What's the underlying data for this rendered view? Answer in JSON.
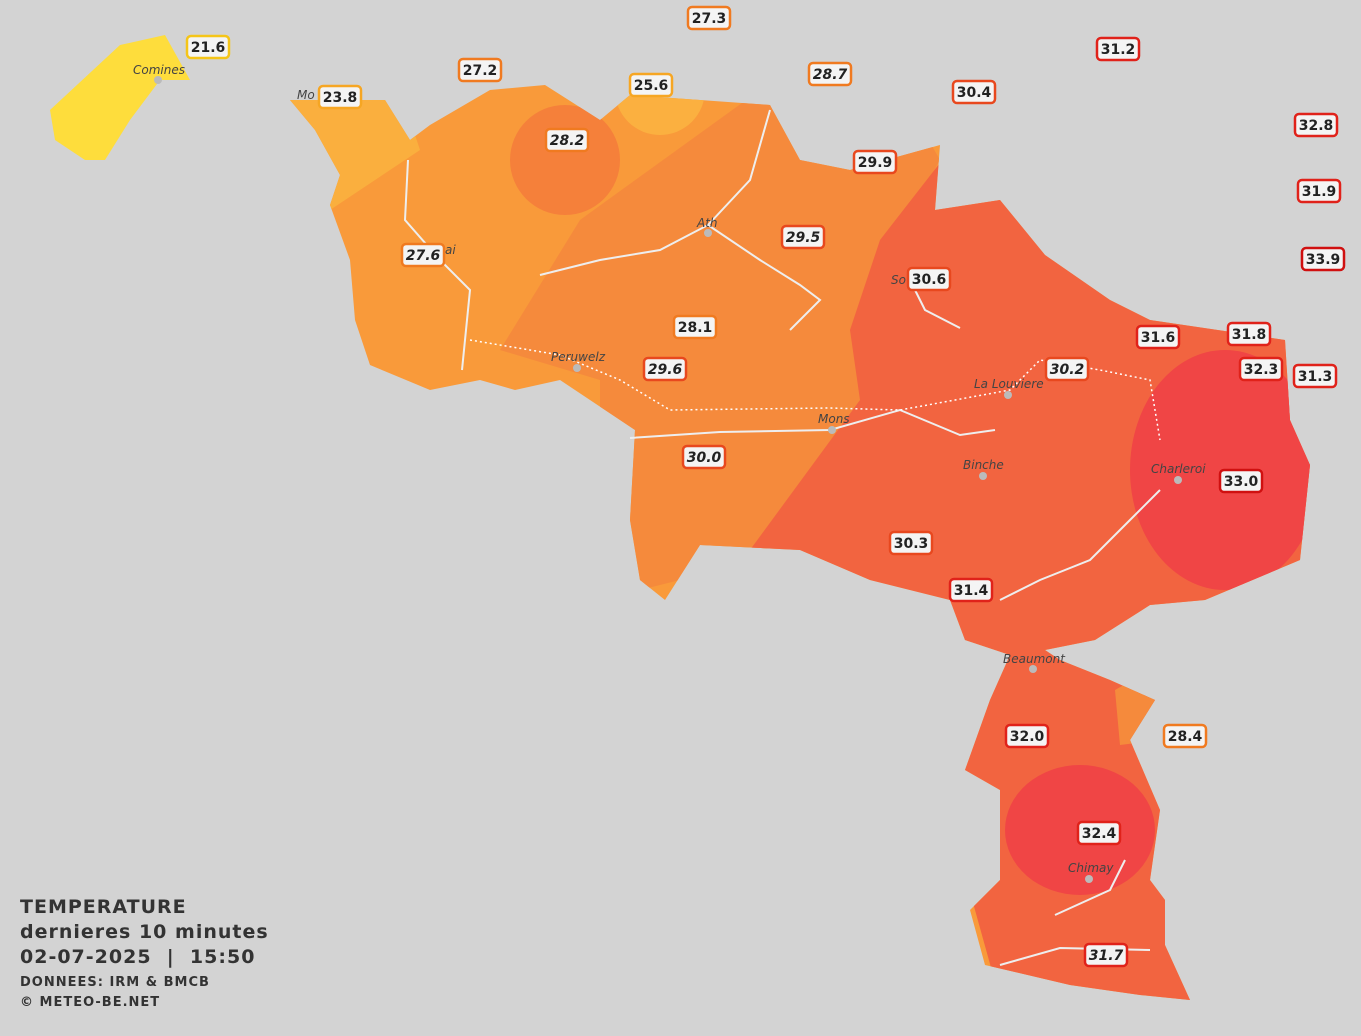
{
  "legend": {
    "title": "TEMPERATURE",
    "subtitle": "dernieres 10 minutes",
    "datetime": "02-07-2025  |  15:50",
    "source": "DONNEES: IRM & BMCB",
    "copyright": "© METEO-BE.NET"
  },
  "places": [
    "Comines",
    "Mo",
    "ai",
    "Ath",
    "So",
    "Peruwelz",
    "La Louviere",
    "Mons",
    "Binche",
    "Charleroi",
    "Beaumont",
    "Chimay"
  ],
  "stations": [
    "21.6",
    "27.3",
    "27.2",
    "25.6",
    "28.7",
    "31.2",
    "30.4",
    "23.8",
    "28.2",
    "32.8",
    "29.9",
    "31.9",
    "29.5",
    "27.6",
    "30.6",
    "33.9",
    "28.1",
    "31.6",
    "31.8",
    "29.6",
    "30.2",
    "32.3",
    "31.3",
    "30.0",
    "33.0",
    "30.3",
    "31.4",
    "32.0",
    "28.4",
    "32.4",
    "31.7"
  ]
}
